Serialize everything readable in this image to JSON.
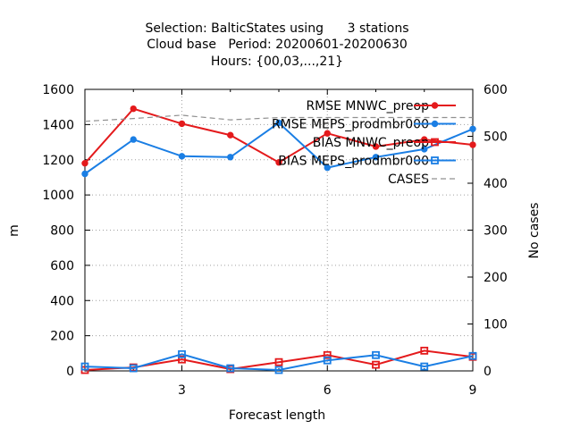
{
  "title": {
    "line1": "Selection: BalticStates using      3 stations",
    "line2": "Cloud base   Period: 20200601-20200630",
    "line3": "Hours: {00,03,...,21}"
  },
  "chart_data": {
    "type": "line",
    "xlabel": "Forecast length",
    "ylabel": "m",
    "y2label": "No cases",
    "xlim": [
      1,
      9
    ],
    "ylim": [
      0,
      1600
    ],
    "y2lim": [
      0,
      600
    ],
    "xticks": [
      3,
      6,
      9
    ],
    "yticks": [
      0,
      200,
      400,
      600,
      800,
      1000,
      1200,
      1400,
      1600
    ],
    "y2ticks": [
      0,
      100,
      200,
      300,
      400,
      500,
      600
    ],
    "grid": true,
    "legend_position": "top-right",
    "x": [
      1,
      2,
      3,
      4,
      5,
      6,
      7,
      8,
      9
    ],
    "series": [
      {
        "name": "RMSE MNWC_preop",
        "axis": "left",
        "color": "#e41a1c",
        "marker": "filled-circle",
        "values": [
          1180,
          1490,
          1405,
          1340,
          1185,
          1350,
          1275,
          1315,
          1285
        ]
      },
      {
        "name": "RMSE MEPS_prodmbr000",
        "axis": "left",
        "color": "#1a7ee4",
        "marker": "filled-circle",
        "values": [
          1120,
          1315,
          1220,
          1215,
          1410,
          1155,
          1215,
          1260,
          1375
        ]
      },
      {
        "name": "BIAS MNWC_preop",
        "axis": "left",
        "color": "#e41a1c",
        "marker": "open-square",
        "values": [
          5,
          20,
          65,
          10,
          50,
          90,
          35,
          115,
          80
        ]
      },
      {
        "name": "BIAS MEPS_prodmbr000",
        "axis": "left",
        "color": "#1a7ee4",
        "marker": "open-square",
        "values": [
          25,
          15,
          95,
          15,
          5,
          60,
          90,
          25,
          85
        ]
      },
      {
        "name": "CASES",
        "axis": "right",
        "color": "#909090",
        "marker": "none",
        "dash": true,
        "values": [
          532,
          538,
          545,
          535,
          540,
          540,
          540,
          540,
          540
        ]
      }
    ]
  }
}
